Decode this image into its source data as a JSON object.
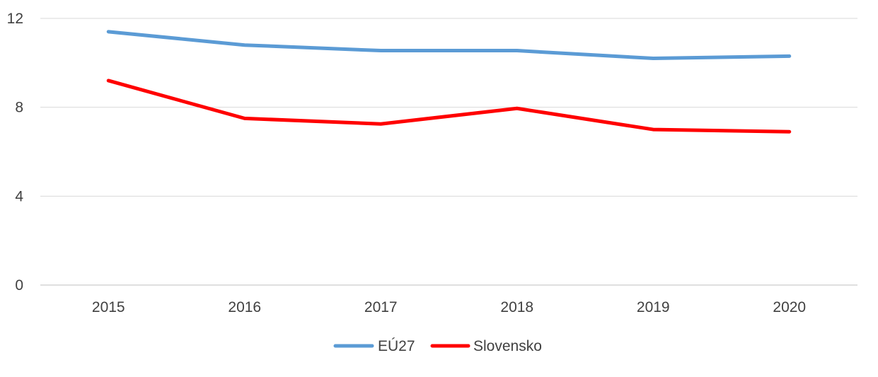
{
  "chart_data": {
    "type": "line",
    "title": "",
    "xlabel": "",
    "ylabel": "",
    "categories": [
      "2015",
      "2016",
      "2017",
      "2018",
      "2019",
      "2020"
    ],
    "ylim": [
      0,
      12
    ],
    "yticks": [
      0,
      4,
      8,
      12
    ],
    "grid": true,
    "legend_position": "bottom",
    "series": [
      {
        "name": "EÚ27",
        "color": "#5B9BD5",
        "values": [
          11.4,
          10.8,
          10.55,
          10.55,
          10.2,
          10.3
        ]
      },
      {
        "name": "Slovensko",
        "color": "#FF0000",
        "values": [
          9.2,
          7.5,
          7.25,
          7.95,
          7.0,
          6.9
        ]
      }
    ]
  }
}
